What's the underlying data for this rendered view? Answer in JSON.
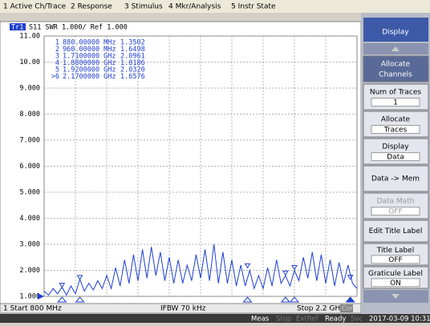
{
  "menu": [
    "1 Active Ch/Trace",
    "2 Response",
    "3 Stimulus",
    "4 Mkr/Analysis",
    "5 Instr State"
  ],
  "trace_header": {
    "tag": "Tr1",
    "text": "S11  SWR 1.000/ Ref 1.000"
  },
  "chart_data": {
    "type": "line",
    "xlim": [
      800,
      2200
    ],
    "ylim": [
      1,
      11
    ],
    "yticks": [
      {
        "value": 1,
        "label": "1.000"
      },
      {
        "value": 2,
        "label": "2.000"
      },
      {
        "value": 3,
        "label": "3.000"
      },
      {
        "value": 4,
        "label": "4.000"
      },
      {
        "value": 5,
        "label": "5.000"
      },
      {
        "value": 6,
        "label": "6.000"
      },
      {
        "value": 7,
        "label": "7.000"
      },
      {
        "value": 8,
        "label": "8.000"
      },
      {
        "value": 9,
        "label": "9.000"
      },
      {
        "value": 10,
        "label": "10.00"
      },
      {
        "value": 11,
        "label": "11.00"
      }
    ],
    "grid": true,
    "color": "#1f3fd0",
    "x": [
      800,
      820,
      840,
      860,
      880,
      900,
      920,
      940,
      960,
      980,
      1000,
      1020,
      1040,
      1060,
      1080,
      1100,
      1120,
      1140,
      1160,
      1180,
      1200,
      1220,
      1240,
      1260,
      1280,
      1300,
      1320,
      1340,
      1360,
      1380,
      1400,
      1420,
      1440,
      1460,
      1480,
      1500,
      1520,
      1540,
      1560,
      1580,
      1600,
      1620,
      1640,
      1660,
      1680,
      1700,
      1720,
      1740,
      1760,
      1780,
      1800,
      1820,
      1840,
      1860,
      1880,
      1900,
      1920,
      1940,
      1960,
      1980,
      2000,
      2020,
      2040,
      2060,
      2080,
      2100,
      2120,
      2140,
      2160,
      2180,
      2200
    ],
    "values": [
      1.2,
      1.05,
      1.3,
      1.1,
      1.35,
      1.05,
      1.4,
      1.1,
      1.65,
      1.2,
      1.5,
      1.25,
      1.6,
      1.3,
      1.8,
      1.3,
      2.1,
      1.4,
      2.4,
      1.5,
      2.6,
      1.6,
      2.8,
      1.7,
      2.9,
      1.8,
      2.7,
      1.6,
      2.5,
      1.5,
      2.4,
      1.5,
      2.2,
      1.6,
      2.6,
      1.7,
      2.8,
      1.6,
      3.0,
      1.5,
      2.7,
      1.5,
      2.4,
      1.4,
      2.2,
      1.4,
      2.0,
      1.3,
      1.8,
      1.3,
      2.1,
      1.4,
      2.4,
      1.5,
      1.8,
      1.4,
      2.0,
      1.6,
      2.5,
      1.7,
      2.7,
      1.6,
      2.6,
      1.5,
      2.4,
      1.4,
      2.3,
      1.5,
      2.2,
      1.5,
      1.3
    ],
    "markers": [
      {
        "label": "1",
        "freq": 880,
        "freq_label": "880.00000 MHz",
        "value": 1.3502,
        "value_label": "1.3502"
      },
      {
        "label": "2",
        "freq": 960,
        "freq_label": "960.00000 MHz",
        "value": 1.6498,
        "value_label": "1.6498"
      },
      {
        "label": "3",
        "freq": 1710,
        "freq_label": "1.7100000 GHz",
        "value": 2.0961,
        "value_label": "2.0961"
      },
      {
        "label": "4",
        "freq": 1880,
        "freq_label": "1.8800000 GHz",
        "value": 1.8186,
        "value_label": "1.8186"
      },
      {
        "label": "5",
        "freq": 1920,
        "freq_label": "1.9200000 GHz",
        "value": 2.032,
        "value_label": "2.0320"
      },
      {
        "label": ">6",
        "freq": 2170,
        "freq_label": "2.1700000 GHz",
        "value": 1.6576,
        "value_label": "1.6576"
      }
    ]
  },
  "status": {
    "start": "1  Start 800 MHz",
    "ifbw": "IFBW 70 kHz",
    "stop": "Stop 2.2 GHz",
    "cor": "Cor"
  },
  "bottom_bar": [
    "Meas",
    "Stop",
    "ExtRef",
    "Ready",
    "Svc",
    "2017-03-09 10:31"
  ],
  "softkeys": {
    "title": "Display",
    "items": [
      [
        "Allocate",
        "Channels"
      ],
      [
        "Num of Traces",
        "1"
      ],
      [
        "Allocate",
        "Traces"
      ],
      [
        "Display",
        "Data"
      ],
      [
        "Data -> Mem"
      ],
      [
        "Data Math",
        "OFF"
      ],
      [
        "Edit Title Label"
      ],
      [
        "Title Label",
        "OFF"
      ],
      [
        "Graticule Label",
        "ON"
      ]
    ]
  }
}
